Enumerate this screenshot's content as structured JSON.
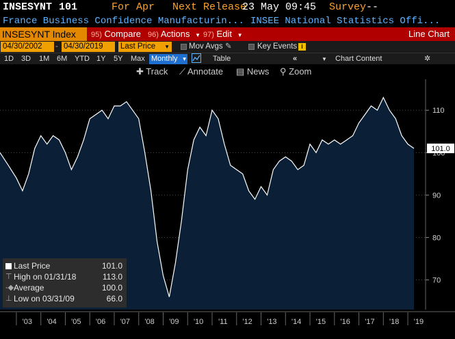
{
  "header": {
    "ticker": "INSESYNT",
    "value": "101",
    "period_label": "For Apr",
    "next_release_label": "Next Release",
    "next_release_value": "23 May 09:45",
    "survey_label": "Survey",
    "survey_value": "--",
    "description": "France Business Confidence Manufacturin...",
    "source": "INSEE National Statistics Offi..."
  },
  "toolbar": {
    "security": "INSESYNT Index",
    "compare_num": "95)",
    "compare_label": "Compare",
    "actions_num": "96)",
    "actions_label": "Actions",
    "edit_num": "97)",
    "edit_label": "Edit",
    "chart_type": "Line Chart"
  },
  "dates": {
    "start": "04/30/2002",
    "end": "04/30/2019",
    "field": "Last Price",
    "mov_avgs": "Mov Avgs",
    "key_events": "Key Events"
  },
  "ranges": {
    "items": [
      "1D",
      "3D",
      "1M",
      "6M",
      "YTD",
      "1Y",
      "5Y",
      "Max"
    ],
    "frequency": "Monthly",
    "table": "Table",
    "chart_content": "Chart Content"
  },
  "tools": {
    "track": "Track",
    "annotate": "Annotate",
    "news": "News",
    "zoom": "Zoom"
  },
  "legend": {
    "last_price_label": "Last Price",
    "last_price_value": "101.0",
    "high_label": "High on 01/31/18",
    "high_value": "113.0",
    "average_label": "Average",
    "average_value": "100.0",
    "low_label": "Low on 03/31/09",
    "low_value": "66.0"
  },
  "colors": {
    "background": "#000000",
    "area_fill": "#0b2036",
    "line": "#ffffff",
    "accent_orange": "#e38800",
    "command_red": "#b00000",
    "link_blue": "#5fb4ff"
  },
  "chart_data": {
    "type": "area",
    "frequency": "monthly",
    "x_tick_labels": [
      "'03",
      "'04",
      "'05",
      "'06",
      "'07",
      "'08",
      "'09",
      "'10",
      "'11",
      "'12",
      "'13",
      "'14",
      "'15",
      "'16",
      "'17",
      "'18",
      "'19"
    ],
    "y_tick_labels": [
      "70",
      "80",
      "90",
      "100",
      "110"
    ],
    "ylim": [
      63,
      116
    ],
    "last_value_label": "101.0",
    "x": [
      2002.33,
      2002.67,
      2003.0,
      2003.25,
      2003.5,
      2003.75,
      2004.0,
      2004.25,
      2004.5,
      2004.75,
      2005.0,
      2005.25,
      2005.5,
      2005.75,
      2006.0,
      2006.25,
      2006.5,
      2006.75,
      2007.0,
      2007.25,
      2007.5,
      2007.75,
      2008.0,
      2008.25,
      2008.5,
      2008.75,
      2009.0,
      2009.25,
      2009.5,
      2009.75,
      2010.0,
      2010.25,
      2010.5,
      2010.75,
      2011.0,
      2011.25,
      2011.5,
      2011.75,
      2012.0,
      2012.25,
      2012.5,
      2012.75,
      2013.0,
      2013.25,
      2013.5,
      2013.75,
      2014.0,
      2014.25,
      2014.5,
      2014.75,
      2015.0,
      2015.25,
      2015.5,
      2015.75,
      2016.0,
      2016.25,
      2016.5,
      2016.75,
      2017.0,
      2017.25,
      2017.5,
      2017.75,
      2018.0,
      2018.25,
      2018.5,
      2018.75,
      2019.0,
      2019.25
    ],
    "y": [
      100,
      97,
      94,
      91,
      95,
      101,
      104,
      102,
      104,
      103,
      100,
      96,
      99,
      103,
      108,
      109,
      110,
      108,
      111,
      111,
      112,
      110,
      108,
      100,
      91,
      79,
      71,
      66,
      74,
      84,
      96,
      103,
      106,
      104,
      110,
      108,
      102,
      97,
      96,
      95,
      91,
      89,
      92,
      90,
      96,
      98,
      99,
      98,
      96,
      97,
      102,
      100,
      103,
      102,
      103,
      102,
      103,
      104,
      107,
      109,
      111,
      110,
      113,
      110,
      108,
      104,
      102,
      101
    ]
  }
}
